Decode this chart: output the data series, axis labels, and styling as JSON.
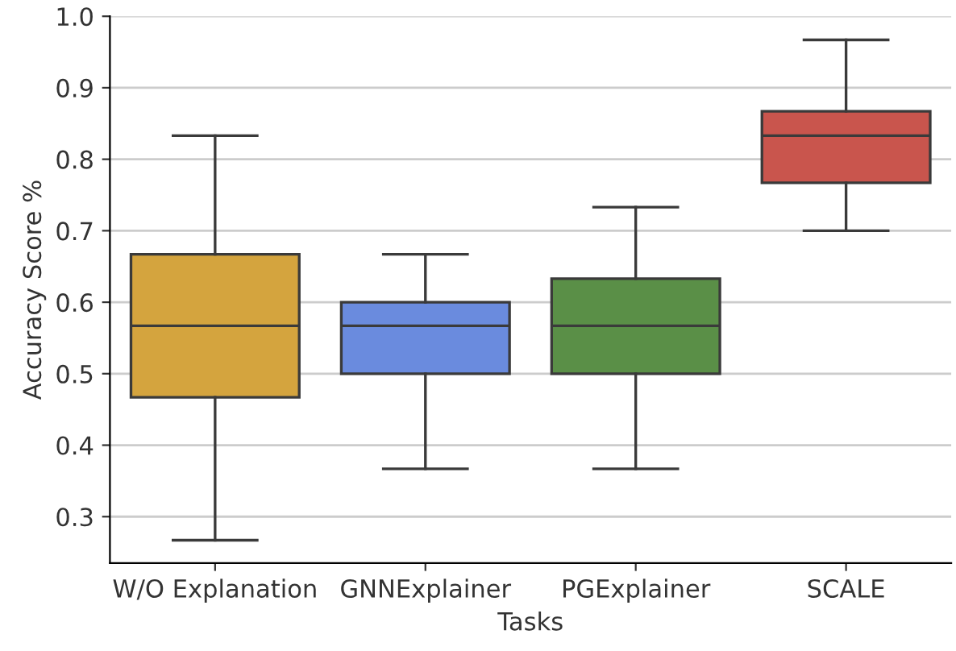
{
  "chart_data": {
    "type": "box",
    "xlabel": "Tasks",
    "ylabel": "Accuracy Score %",
    "categories": [
      "W/O Explanation",
      "GNNExplainer",
      "PGExplainer",
      "SCALE"
    ],
    "colors": [
      "#d4a43e",
      "#6a8bde",
      "#5a8f47",
      "#c9554d"
    ],
    "boxes": [
      {
        "low": 0.267,
        "q1": 0.467,
        "median": 0.567,
        "q3": 0.667,
        "high": 0.833
      },
      {
        "low": 0.367,
        "q1": 0.5,
        "median": 0.567,
        "q3": 0.6,
        "high": 0.667
      },
      {
        "low": 0.367,
        "q1": 0.5,
        "median": 0.567,
        "q3": 0.633,
        "high": 0.733
      },
      {
        "low": 0.7,
        "q1": 0.767,
        "median": 0.833,
        "q3": 0.867,
        "high": 0.967
      }
    ],
    "ylim": [
      0.235,
      1.0
    ],
    "yticks": [
      0.3,
      0.4,
      0.5,
      0.6,
      0.7,
      0.8,
      0.9,
      {
        "value": 1.0,
        "label": "1.0"
      }
    ],
    "grid": "y"
  }
}
